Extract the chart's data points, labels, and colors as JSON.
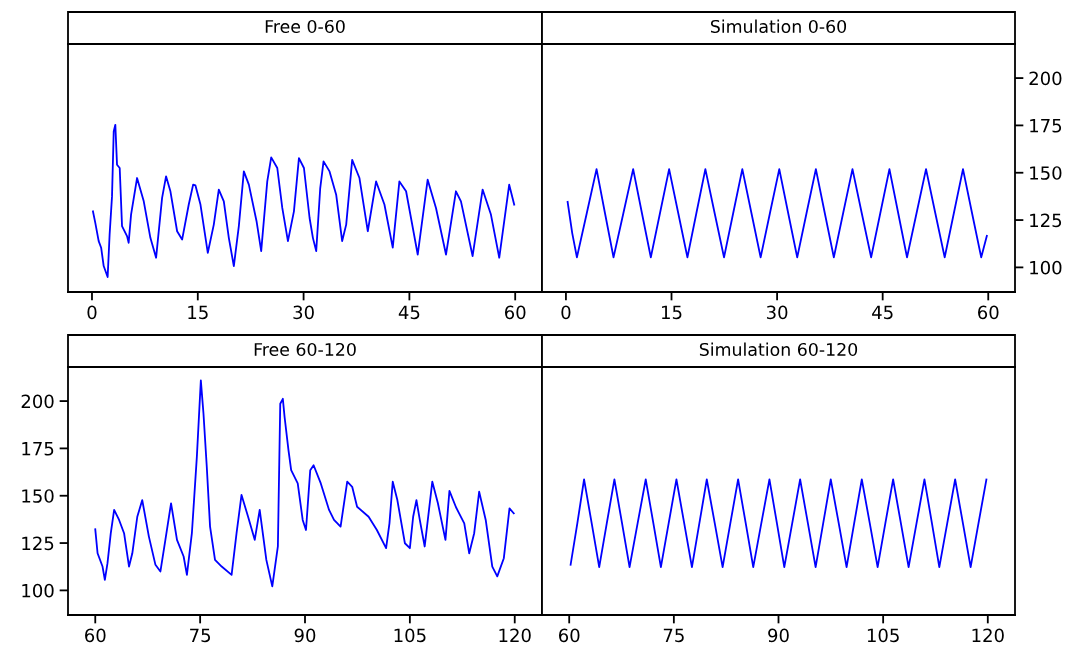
{
  "chart_data": [
    {
      "type": "line",
      "title": "Free 0-60",
      "xlim": [
        -3.4,
        63.8
      ],
      "ylim": [
        87,
        218
      ],
      "xticks": [
        0,
        15,
        30,
        45,
        60
      ],
      "yticks": [
        100,
        125,
        150,
        175,
        200
      ],
      "tick_labels": "x",
      "grid": false,
      "series": [
        {
          "color": "#0000ff",
          "x": [
            0.14,
            0.47,
            0.95,
            1.3,
            1.66,
            2.22,
            2.5,
            2.84,
            3.08,
            3.31,
            3.55,
            3.93,
            4.26,
            4.97,
            5.2,
            5.54,
            6.39,
            7.34,
            8.28,
            9.09,
            9.94,
            10.5,
            11.12,
            12.07,
            12.78,
            13.72,
            14.34,
            14.67,
            15.38,
            16.42,
            17.27,
            17.98,
            18.69,
            19.4,
            20.11,
            20.82,
            21.53,
            22.24,
            23.33,
            23.99,
            24.85,
            25.41,
            26.27,
            26.98,
            27.78,
            28.63,
            29.34,
            30.05,
            30.85,
            31.32,
            31.79,
            32.36,
            32.83,
            33.68,
            34.62,
            35.47,
            36.04,
            36.89,
            37.92,
            39.1,
            40.28,
            41.46,
            42.64,
            43.58,
            44.53,
            46.18,
            47.59,
            48.77,
            50.19,
            51.6,
            52.31,
            53.96,
            55.38,
            56.56,
            57.74,
            59.15,
            59.86
          ],
          "values": [
            129.6,
            123.5,
            113.9,
            110.4,
            100.7,
            94.9,
            117.4,
            137.5,
            171.8,
            175.3,
            154.2,
            152.5,
            121.8,
            116.5,
            113,
            127.9,
            147.2,
            134.9,
            115.6,
            105.1,
            136.7,
            148.1,
            140.2,
            119.1,
            114.7,
            133.2,
            143.7,
            143.3,
            133.2,
            107.7,
            122.6,
            141.1,
            134.9,
            115.6,
            100.7,
            121.8,
            150.7,
            143.7,
            124.4,
            108.6,
            145.4,
            158.1,
            152.5,
            131.4,
            113.9,
            129.6,
            157.7,
            152.5,
            126.1,
            115.6,
            108.6,
            141.9,
            156,
            150.7,
            138.4,
            113.9,
            122.6,
            156.8,
            147.2,
            119.1,
            145.4,
            133.2,
            110.4,
            145.4,
            140.2,
            106.8,
            146.3,
            131.4,
            106.8,
            140.2,
            134.9,
            106,
            141.1,
            127.9,
            105.1,
            143.7,
            133.2
          ]
        }
      ]
    },
    {
      "type": "line",
      "title": "Simulation 0-60",
      "xlim": [
        -3.4,
        63.8
      ],
      "ylim": [
        87,
        218
      ],
      "xticks": [
        0,
        15,
        30,
        45,
        60
      ],
      "yticks": [
        100,
        125,
        150,
        175,
        200
      ],
      "grid": false,
      "series": [
        {
          "color": "#0000ff",
          "x": [
            0.24,
            0.9,
            1.56,
            2.96,
            4.35,
            5.55,
            6.76,
            8.16,
            9.55,
            10.8,
            12.06,
            13.36,
            14.66,
            15.96,
            17.26,
            18.53,
            19.81,
            21.13,
            22.46,
            23.76,
            25.06,
            26.36,
            27.66,
            28.98,
            30.31,
            31.58,
            32.86,
            34.18,
            35.51,
            36.78,
            38.06,
            39.38,
            40.71,
            42.03,
            43.36,
            44.66,
            45.96,
            47.21,
            48.46,
            49.81,
            51.16,
            52.48,
            53.81,
            55.11,
            56.41,
            57.7,
            59.0,
            59.8
          ],
          "values": [
            134.6,
            118,
            105.3,
            128.6,
            151.9,
            128.6,
            105.3,
            128.6,
            151.9,
            128.6,
            105.3,
            128.6,
            151.9,
            128.6,
            105.3,
            128.6,
            151.9,
            128.6,
            105.3,
            128.6,
            151.9,
            128.6,
            105.3,
            128.6,
            151.9,
            128.6,
            105.3,
            128.6,
            151.9,
            128.6,
            105.3,
            128.6,
            151.9,
            128.6,
            105.3,
            128.6,
            151.9,
            128.6,
            105.3,
            128.6,
            151.9,
            128.6,
            105.3,
            128.6,
            151.9,
            128.6,
            105.3,
            116.6
          ]
        }
      ]
    },
    {
      "type": "line",
      "title": "Free 60-120",
      "xlim": [
        56.1,
        123.9
      ],
      "ylim": [
        87,
        218
      ],
      "xticks": [
        60,
        75,
        90,
        105,
        120
      ],
      "yticks": [
        100,
        125,
        150,
        175,
        200
      ],
      "grid": false,
      "series": [
        {
          "color": "#0000ff",
          "x": [
            60,
            60.33,
            61.04,
            61.37,
            61.75,
            62.22,
            62.7,
            63.41,
            64.12,
            64.83,
            65.3,
            66.01,
            66.72,
            67.67,
            68.61,
            69.32,
            70.03,
            70.84,
            71.69,
            72.64,
            73.11,
            73.82,
            74.53,
            75.1,
            75.48,
            75.95,
            76.42,
            77.13,
            78.08,
            79.5,
            80.21,
            80.92,
            81.86,
            82.81,
            83.52,
            84.47,
            85.32,
            86.12,
            86.46,
            86.83,
            87.08,
            87.64,
            88.02,
            88.96,
            89.67,
            90.14,
            90.75,
            91.23,
            92.26,
            93.44,
            94.15,
            95.09,
            96.04,
            96.75,
            97.45,
            99.1,
            100.28,
            101.6,
            102.08,
            102.55,
            103.21,
            104.29,
            105.0,
            105.47,
            105.94,
            106.42,
            107.12,
            108.21,
            109.01,
            110.09,
            110.66,
            111.6,
            112.78,
            113.49,
            114.2,
            114.91,
            115.85,
            116.79,
            117.5,
            118.44,
            119.25,
            119.86
          ],
          "values": [
            132.3,
            119.6,
            112.6,
            105.6,
            114.4,
            130.2,
            142.5,
            137.2,
            130.2,
            112.6,
            119.6,
            138.9,
            147.7,
            128.4,
            113.5,
            110,
            126.7,
            146,
            126.7,
            117.9,
            108.2,
            130.2,
            170.5,
            210.9,
            193.3,
            165.3,
            133.7,
            116.1,
            112.6,
            108.2,
            130.2,
            150.4,
            138.9,
            126.7,
            142.5,
            116.1,
            102.1,
            123.2,
            198.6,
            201.2,
            191.6,
            174,
            163.5,
            156.5,
            137.2,
            131.9,
            163.5,
            166.1,
            156.5,
            142.5,
            137.2,
            133.7,
            157.4,
            154.7,
            144.2,
            138.9,
            131.9,
            122.3,
            135.4,
            157.4,
            147.7,
            124.9,
            122.3,
            138.9,
            147.7,
            137.2,
            123.2,
            157.4,
            146,
            126.7,
            152.6,
            143.9,
            135.4,
            119.6,
            130.2,
            152.1,
            137.2,
            112.6,
            107.4,
            117,
            143.3,
            140.7
          ]
        }
      ]
    },
    {
      "type": "line",
      "title": "Simulation 60-120",
      "xlim": [
        56.1,
        123.9
      ],
      "ylim": [
        87,
        218
      ],
      "xticks": [
        60,
        75,
        90,
        105,
        120
      ],
      "yticks": [
        100,
        125,
        150,
        175,
        200
      ],
      "tick_labels": "x",
      "grid": false,
      "series": [
        {
          "color": "#0000ff",
          "x": [
            60.2,
            61.17,
            62.13,
            63.22,
            64.3,
            65.39,
            66.48,
            67.57,
            68.65,
            69.81,
            70.97,
            72.06,
            73.14,
            74.26,
            75.37,
            76.48,
            77.59,
            78.66,
            79.72,
            80.86,
            81.99,
            83.1,
            84.21,
            85.3,
            86.38,
            87.54,
            88.7,
            89.77,
            90.83,
            91.97,
            93.1,
            94.21,
            95.32,
            96.41,
            97.49,
            98.63,
            99.76,
            100.85,
            101.94,
            103.08,
            104.21,
            105.32,
            106.43,
            107.54,
            108.65,
            109.79,
            110.92,
            111.99,
            113.05,
            114.19,
            115.32,
            116.43,
            117.54,
            118.67,
            119.8
          ],
          "values": [
            113.5,
            135.5,
            158.6,
            135.5,
            112.3,
            135.5,
            158.6,
            135.5,
            112.3,
            135.5,
            158.6,
            135.5,
            112.3,
            135.5,
            158.6,
            135.5,
            112.3,
            135.5,
            158.6,
            135.5,
            112.3,
            135.5,
            158.6,
            135.5,
            112.3,
            135.5,
            158.6,
            135.5,
            112.3,
            135.5,
            158.6,
            135.5,
            112.3,
            135.5,
            158.6,
            135.5,
            112.3,
            135.5,
            158.6,
            135.5,
            112.3,
            135.5,
            158.6,
            135.5,
            112.3,
            135.5,
            158.6,
            135.5,
            112.3,
            135.5,
            158.6,
            135.5,
            112.3,
            135.5,
            158.6
          ]
        }
      ]
    }
  ]
}
